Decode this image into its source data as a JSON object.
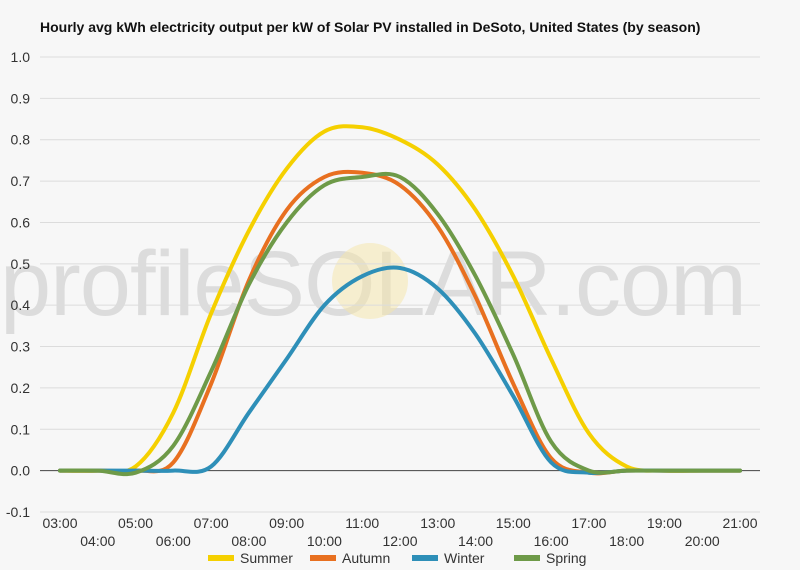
{
  "chart_data": {
    "type": "line",
    "title": "Hourly avg kWh electricity output per kW of Solar PV installed in DeSoto, United States (by season)",
    "xlabel": "",
    "ylabel": "",
    "ylim": [
      -0.1,
      1.0
    ],
    "yticks": [
      -0.1,
      0.0,
      0.1,
      0.2,
      0.3,
      0.4,
      0.5,
      0.6,
      0.7,
      0.8,
      0.9,
      1.0
    ],
    "ytick_labels": [
      "-0.1",
      "0.0",
      "0.1",
      "0.2",
      "0.3",
      "0.4",
      "0.5",
      "0.6",
      "0.7",
      "0.8",
      "0.9",
      "1.0"
    ],
    "x": [
      "03:00",
      "04:00",
      "05:00",
      "06:00",
      "07:00",
      "08:00",
      "09:00",
      "10:00",
      "11:00",
      "12:00",
      "13:00",
      "14:00",
      "15:00",
      "16:00",
      "17:00",
      "18:00",
      "19:00",
      "20:00",
      "21:00"
    ],
    "grid": true,
    "legend": "bottom",
    "series": [
      {
        "name": "Summer",
        "color": "#f5d000",
        "values": [
          0.0,
          0.0,
          0.01,
          0.14,
          0.38,
          0.58,
          0.73,
          0.82,
          0.83,
          0.8,
          0.74,
          0.63,
          0.47,
          0.27,
          0.09,
          0.01,
          0.0,
          0.0,
          0.0
        ]
      },
      {
        "name": "Autumn",
        "color": "#e87020",
        "values": [
          0.0,
          0.0,
          0.0,
          0.02,
          0.21,
          0.46,
          0.63,
          0.71,
          0.72,
          0.69,
          0.59,
          0.42,
          0.21,
          0.03,
          -0.005,
          0.0,
          0.0,
          0.0,
          0.0
        ]
      },
      {
        "name": "Winter",
        "color": "#2e8fb8",
        "values": [
          0.0,
          0.0,
          0.0,
          0.0,
          0.01,
          0.14,
          0.27,
          0.4,
          0.47,
          0.49,
          0.44,
          0.33,
          0.18,
          0.02,
          -0.005,
          0.0,
          0.0,
          0.0,
          0.0
        ]
      },
      {
        "name": "Spring",
        "color": "#6e9a48",
        "values": [
          0.0,
          0.0,
          -0.005,
          0.06,
          0.24,
          0.45,
          0.6,
          0.69,
          0.71,
          0.71,
          0.62,
          0.47,
          0.28,
          0.07,
          0.0,
          0.0,
          0.0,
          0.0,
          0.0
        ]
      }
    ]
  },
  "watermark": "profileSOLAR.com"
}
